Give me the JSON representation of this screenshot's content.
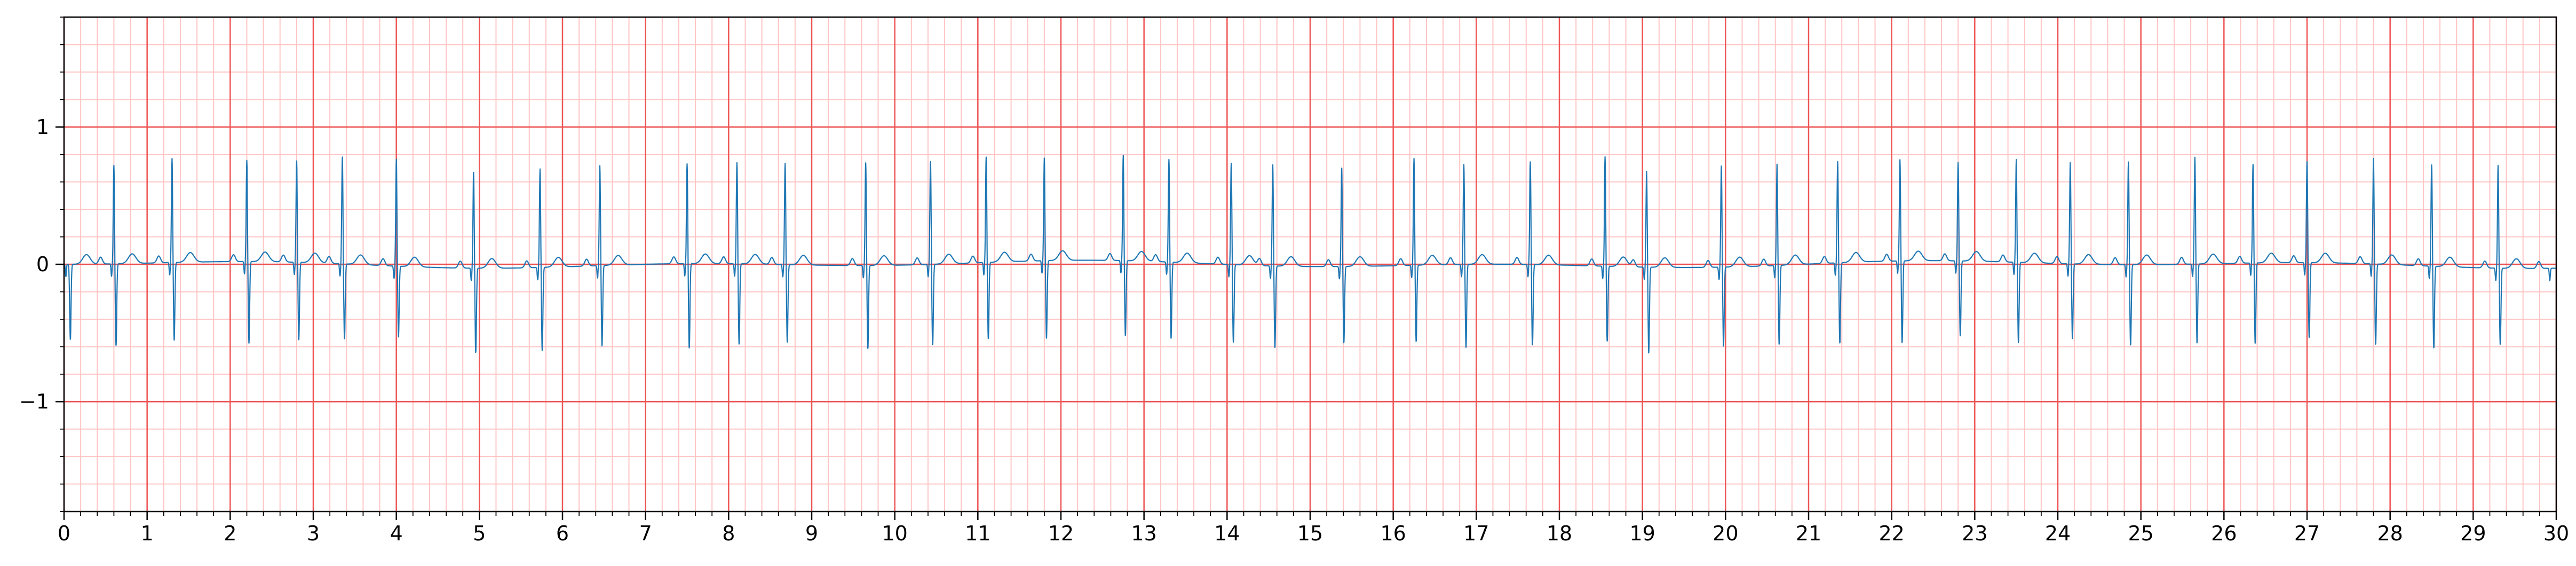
{
  "chart_data": {
    "type": "line",
    "title": "",
    "xlabel": "",
    "ylabel": "",
    "xlim": [
      0,
      30
    ],
    "ylim": [
      -1.8,
      1.8
    ],
    "x_ticks": [
      0,
      1,
      2,
      3,
      4,
      5,
      6,
      7,
      8,
      9,
      10,
      11,
      12,
      13,
      14,
      15,
      16,
      17,
      18,
      19,
      20,
      21,
      22,
      23,
      24,
      25,
      26,
      27,
      28,
      29,
      30
    ],
    "x_tick_labels": [
      "0",
      "1",
      "2",
      "3",
      "4",
      "5",
      "6",
      "7",
      "8",
      "9",
      "10",
      "11",
      "12",
      "13",
      "14",
      "15",
      "16",
      "17",
      "18",
      "19",
      "20",
      "21",
      "22",
      "23",
      "24",
      "25",
      "26",
      "27",
      "28",
      "29",
      "30"
    ],
    "y_ticks": [
      -1,
      0,
      1
    ],
    "y_tick_labels": [
      "−1",
      "0",
      "1"
    ],
    "grid": {
      "major": true,
      "minor": true,
      "major_x_step": 1,
      "major_y_step": 1,
      "minor_x_step": 0.2,
      "minor_y_step": 0.2,
      "major_color": "#ee5555",
      "minor_color": "#ffc4c4"
    },
    "legend": "none",
    "series": [
      {
        "color": "#1f77b4",
        "waveform": "ECG",
        "beat_times": [
          0.05,
          0.6,
          1.3,
          2.2,
          2.8,
          3.35,
          4.0,
          4.93,
          5.73,
          6.45,
          7.5,
          8.1,
          8.68,
          9.65,
          10.43,
          11.1,
          11.8,
          12.75,
          13.3,
          14.05,
          14.55,
          15.38,
          16.25,
          16.85,
          17.65,
          18.55,
          19.05,
          19.95,
          20.62,
          21.35,
          22.1,
          22.8,
          23.5,
          24.15,
          24.85,
          25.65,
          26.35,
          27.0,
          27.8,
          28.5,
          29.3,
          29.95
        ],
        "r_amplitudes": [
          0.0,
          0.72,
          0.76,
          0.74,
          0.74,
          0.78,
          0.78,
          0.7,
          0.72,
          0.73,
          0.73,
          0.74,
          0.74,
          0.75,
          0.75,
          0.77,
          0.75,
          0.77,
          0.75,
          0.74,
          0.74,
          0.72,
          0.78,
          0.73,
          0.75,
          0.8,
          0.7,
          0.74,
          0.74,
          0.74,
          0.74,
          0.72,
          0.75,
          0.74,
          0.75,
          0.78,
          0.72,
          0.74,
          0.77,
          0.74,
          0.75,
          0.0
        ],
        "s_amplitudes": [
          -0.55,
          -0.6,
          -0.57,
          -0.6,
          -0.57,
          -0.55,
          -0.52,
          -0.62,
          -0.61,
          -0.59,
          -0.62,
          -0.59,
          -0.57,
          -0.61,
          -0.59,
          -0.56,
          -0.57,
          -0.55,
          -0.56,
          -0.57,
          -0.6,
          -0.56,
          -0.56,
          -0.61,
          -0.59,
          -0.55,
          -0.63,
          -0.58,
          -0.58,
          -0.59,
          -0.6,
          -0.55,
          -0.59,
          -0.55,
          -0.59,
          -0.58,
          -0.59,
          -0.55,
          -0.59,
          -0.6,
          -0.56,
          0.0
        ]
      }
    ]
  }
}
